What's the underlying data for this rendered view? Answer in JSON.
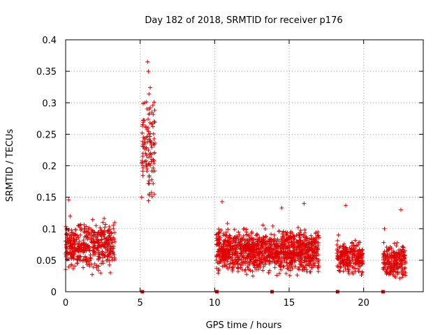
{
  "chart_data": {
    "type": "scatter",
    "title": "Day 182 of 2018, SRMTID for receiver p176",
    "xlabel": "GPS time / hours",
    "ylabel": "SRMTID / TECUs",
    "xlim": [
      0,
      24
    ],
    "ylim": [
      0,
      0.4
    ],
    "x_ticks": [
      0,
      5,
      10,
      15,
      20
    ],
    "x_tick_labels": [
      "0",
      "5",
      "10",
      "15",
      "20"
    ],
    "y_ticks": [
      0,
      0.05,
      0.1,
      0.15,
      0.2,
      0.25,
      0.3,
      0.35,
      0.4
    ],
    "y_tick_labels": [
      "0",
      "0.05",
      "0.1",
      "0.15",
      "0.2",
      "0.25",
      "0.3",
      "0.35",
      "0.4"
    ],
    "grid": true,
    "colors": {
      "points": "#e00000",
      "gap_markers": "#d40000",
      "grid": "#a0a0a0",
      "axes": "#000000"
    },
    "series": [
      {
        "name": "SRMTID",
        "marker": "plus",
        "clusters": [
          {
            "x_range": [
              0.0,
              3.3
            ],
            "y_center": 0.072,
            "y_spread": 0.028,
            "count": 420
          },
          {
            "x_range": [
              5.1,
              6.0
            ],
            "y_center": 0.23,
            "y_spread": 0.065,
            "count": 110
          },
          {
            "x_range": [
              10.1,
              17.0
            ],
            "y_center": 0.065,
            "y_spread": 0.025,
            "count": 1150
          },
          {
            "x_range": [
              18.2,
              19.95
            ],
            "y_center": 0.055,
            "y_spread": 0.022,
            "count": 230
          },
          {
            "x_range": [
              21.3,
              22.8
            ],
            "y_center": 0.05,
            "y_spread": 0.022,
            "count": 200
          }
        ],
        "sample_points": [
          [
            0.0,
            0.06
          ],
          [
            0.2,
            0.146
          ],
          [
            0.3,
            0.12
          ],
          [
            0.5,
            0.08
          ],
          [
            1.0,
            0.05
          ],
          [
            1.5,
            0.09
          ],
          [
            2.0,
            0.07
          ],
          [
            2.5,
            0.11
          ],
          [
            3.0,
            0.03
          ],
          [
            3.2,
            0.1
          ],
          [
            5.1,
            0.15
          ],
          [
            5.2,
            0.2
          ],
          [
            5.3,
            0.3
          ],
          [
            5.5,
            0.365
          ],
          [
            5.55,
            0.35
          ],
          [
            5.6,
            0.29
          ],
          [
            5.7,
            0.24
          ],
          [
            5.8,
            0.21
          ],
          [
            5.95,
            0.155
          ],
          [
            10.1,
            0.05
          ],
          [
            10.5,
            0.143
          ],
          [
            11.0,
            0.06
          ],
          [
            12.0,
            0.1
          ],
          [
            13.0,
            0.05
          ],
          [
            14.0,
            0.09
          ],
          [
            14.5,
            0.133
          ],
          [
            15.0,
            0.07
          ],
          [
            16.0,
            0.14
          ],
          [
            16.5,
            0.08
          ],
          [
            17.0,
            0.05
          ],
          [
            18.3,
            0.09
          ],
          [
            18.8,
            0.137
          ],
          [
            19.3,
            0.06
          ],
          [
            19.9,
            0.03
          ],
          [
            21.4,
            0.1
          ],
          [
            22.0,
            0.04
          ],
          [
            22.5,
            0.13
          ],
          [
            22.8,
            0.03
          ]
        ]
      }
    ],
    "gap_markers_x": [
      5.15,
      10.15,
      13.85,
      18.25,
      21.3
    ]
  }
}
